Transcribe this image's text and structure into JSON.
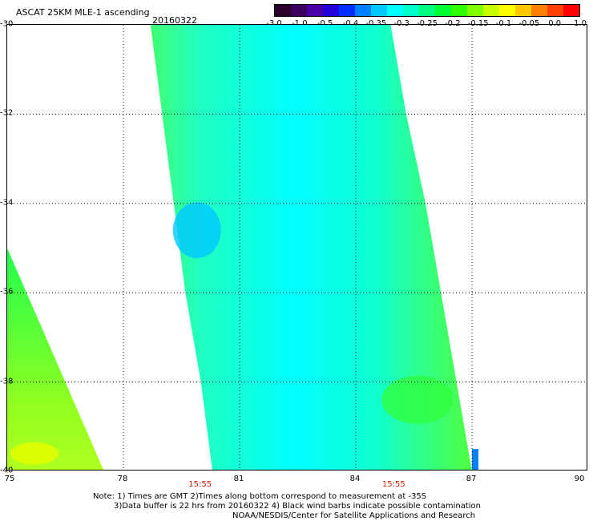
{
  "header": {
    "title": "ASCAT 25KM MLE-1 ascending",
    "date": "20160322"
  },
  "colorbar": {
    "labels": [
      "-3.0",
      "-1.0",
      "-0.5",
      "-0.4",
      "-0.35",
      "-0.3",
      "-0.25",
      "-0.2",
      "-0.15",
      "-0.1",
      "-0.05",
      "0.0",
      "1.0"
    ],
    "colors": [
      "#2a002a",
      "#3c0060",
      "#4a00a8",
      "#2400d8",
      "#0030ff",
      "#0080ff",
      "#00c8ff",
      "#00ffff",
      "#00ffc8",
      "#00ff80",
      "#00ff30",
      "#30ff00",
      "#80ff00",
      "#c8ff00",
      "#ffff00",
      "#ffc800",
      "#ff8000",
      "#ff4000",
      "#ff0000"
    ]
  },
  "axes": {
    "lat_labels": [
      "-30",
      "-32",
      "-34",
      "-36",
      "-38",
      "-40"
    ],
    "lat_values": [
      -30,
      -32,
      -34,
      -36,
      -38,
      -40
    ],
    "lon_labels": [
      "75",
      "78",
      "81",
      "84",
      "87",
      "90"
    ],
    "lon_values": [
      75,
      78,
      81,
      84,
      87,
      90
    ],
    "lat_range": [
      -40,
      -30
    ],
    "lon_range": [
      75,
      90
    ]
  },
  "pass_times": [
    {
      "label": "15:55",
      "lon": 80.0
    },
    {
      "label": "15:55",
      "lon": 85.0
    }
  ],
  "notes": {
    "line1": "Note: 1) Times are GMT 2)Times along bottom correspond to measurement at -35S",
    "line2": "3)Data buffer is 22 hrs from 20160322 4) Black wind barbs indicate possible contamination",
    "line3": "NOAA/NESDIS/Center for Satellite Applications and Research"
  },
  "swaths": {
    "main": {
      "left_edge": [
        [
          -30.0,
          78.7
        ],
        [
          -32.0,
          79.0
        ],
        [
          -34.0,
          79.3
        ],
        [
          -36.0,
          79.6
        ],
        [
          -38.0,
          80.0
        ],
        [
          -40.0,
          80.3
        ]
      ],
      "right_edge": [
        [
          -30.0,
          84.9
        ],
        [
          -32.0,
          85.3
        ],
        [
          -34.0,
          85.8
        ],
        [
          -36.0,
          86.2
        ],
        [
          -38.0,
          86.6
        ],
        [
          -40.0,
          87.0
        ]
      ],
      "fill_color": "#00ffff",
      "edge_color": "#40ff60"
    },
    "left": {
      "edge": [
        [
          -35.0,
          75.0
        ],
        [
          -40.0,
          77.5
        ]
      ],
      "fill_color": "#40ff40",
      "spot_color": "#e0ff00"
    }
  }
}
